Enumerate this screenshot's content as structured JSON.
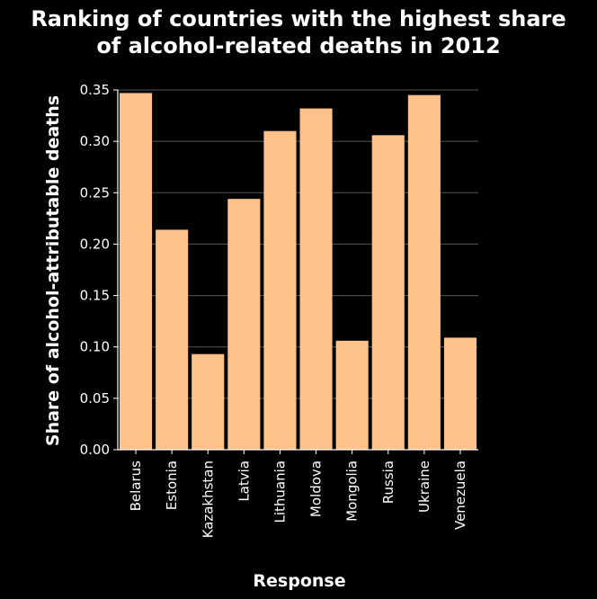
{
  "chart_data": {
    "type": "bar",
    "title": "Ranking of countries with the highest share of alcohol-related deaths in 2012",
    "title_lines": [
      "Ranking of countries with the highest share",
      "of alcohol-related deaths in 2012"
    ],
    "xlabel": "Response",
    "ylabel": "Share of alcohol-attributable deaths",
    "categories": [
      "Belarus",
      "Estonia",
      "Kazakhstan",
      "Latvia",
      "Lithuania",
      "Moldova",
      "Mongolia",
      "Russia",
      "Ukraine",
      "Venezuela"
    ],
    "values": [
      0.347,
      0.214,
      0.093,
      0.244,
      0.31,
      0.332,
      0.106,
      0.306,
      0.345,
      0.109
    ],
    "ylim": [
      0,
      0.35
    ],
    "yticks": [
      "0.00",
      "0.05",
      "0.10",
      "0.15",
      "0.20",
      "0.25",
      "0.30",
      "0.35"
    ],
    "grid": true,
    "legend": "none",
    "colors": {
      "background": "#000000",
      "bar": "#ffc28a",
      "grid": "#555555",
      "axis": "#ffffff",
      "text": "#ffffff"
    }
  }
}
